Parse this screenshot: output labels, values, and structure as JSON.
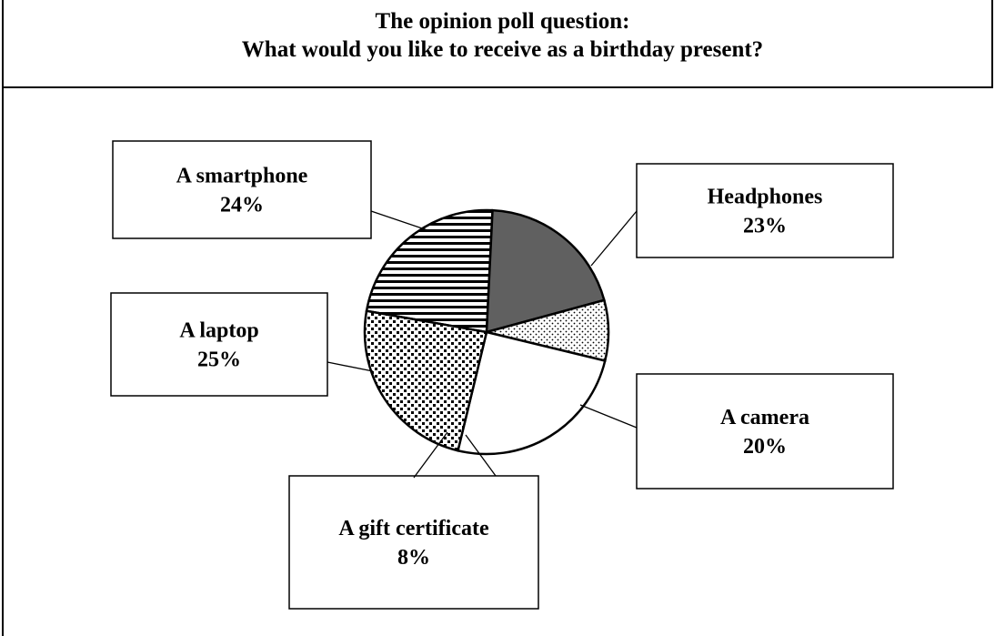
{
  "header": {
    "line1": "The opinion poll question:",
    "line2": "What would you like to receive as a birthday present?"
  },
  "chart_data": {
    "type": "pie",
    "title": "The opinion poll question: What would you like to receive as a birthday present?",
    "slices": [
      {
        "label": "Headphones",
        "value": 23,
        "value_label": "23%",
        "pattern": "horizontal-stripes"
      },
      {
        "label": "A camera",
        "value": 20,
        "value_label": "20%",
        "pattern": "solid-gray",
        "color": "#606060"
      },
      {
        "label": "A gift certificate",
        "value": 8,
        "value_label": "8%",
        "pattern": "dots"
      },
      {
        "label": "A laptop",
        "value": 25,
        "value_label": "25%",
        "pattern": "white",
        "color": "#ffffff"
      },
      {
        "label": "A smartphone",
        "value": 24,
        "value_label": "24%",
        "pattern": "checkered"
      }
    ],
    "legend": "callout-boxes"
  }
}
